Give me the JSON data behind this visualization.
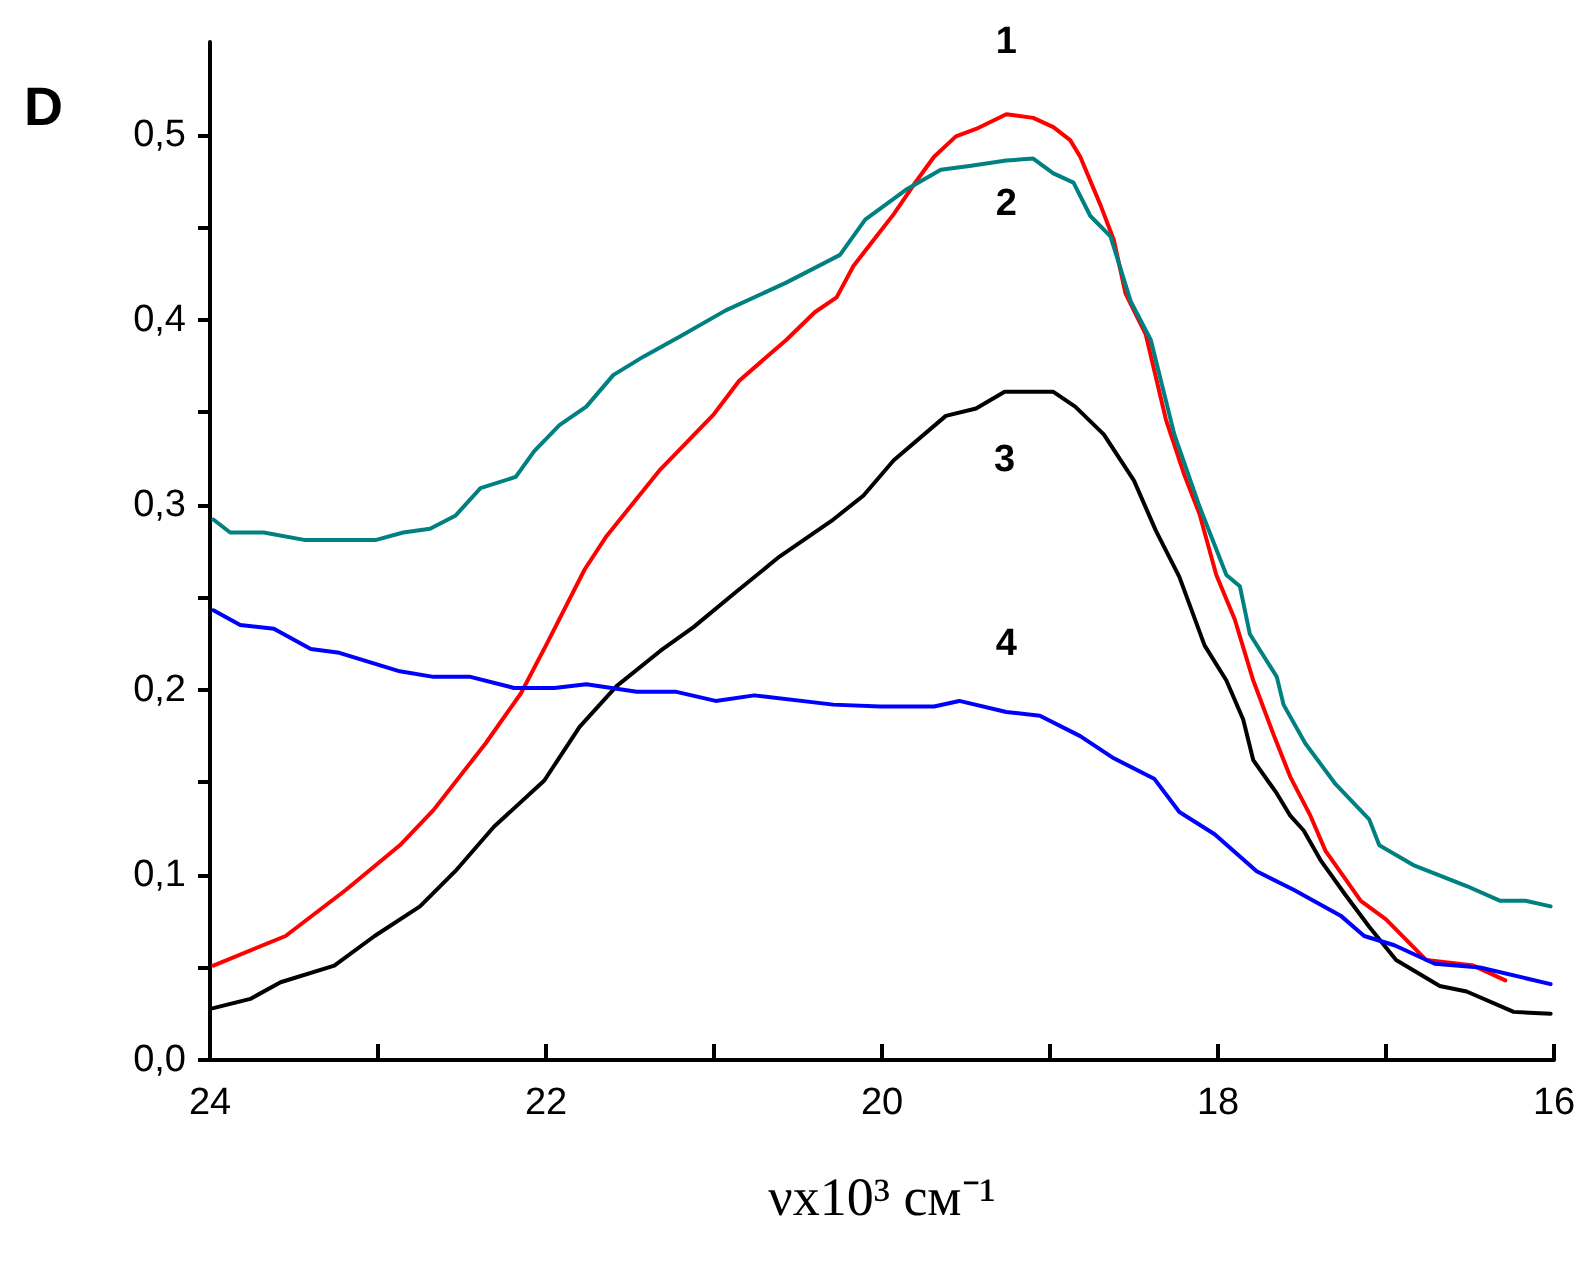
{
  "chart_data": {
    "type": "line",
    "xlabel": "νx10³ см⁻¹",
    "ylabel": "D",
    "xlim": [
      24,
      16
    ],
    "xticks": [
      24,
      {
        "value": 23,
        "label": null
      },
      22,
      {
        "value": 21,
        "label": null
      },
      20,
      {
        "value": 19,
        "label": null
      },
      18,
      {
        "value": 17,
        "label": null
      },
      16
    ],
    "ylim": [
      0,
      0.55
    ],
    "yticks": [
      {
        "value": 0,
        "label": "0,0"
      },
      {
        "value": 0.05,
        "label": null
      },
      {
        "value": 0.1,
        "label": "0,1"
      },
      {
        "value": 0.15,
        "label": null
      },
      {
        "value": 0.2,
        "label": "0,2"
      },
      {
        "value": 0.25,
        "label": null
      },
      {
        "value": 0.3,
        "label": "0,3"
      },
      {
        "value": 0.35,
        "label": null
      },
      {
        "value": 0.4,
        "label": "0,4"
      },
      {
        "value": 0.45,
        "label": null
      },
      {
        "value": 0.5,
        "label": "0,5"
      }
    ],
    "grid": false,
    "legend": false,
    "marker": "none",
    "line_style": "solid",
    "series": [
      {
        "name": "1",
        "color": "#ff0000",
        "x": [
          23.98,
          23.55,
          23.19,
          22.87,
          22.67,
          22.36,
          22.15,
          22.0,
          21.77,
          21.64,
          21.32,
          21.0,
          20.85,
          20.57,
          20.4,
          20.27,
          20.17,
          20.05,
          19.93,
          19.81,
          19.69,
          19.56,
          19.44,
          19.26,
          19.1,
          18.98,
          18.88,
          18.82,
          18.7,
          18.62,
          18.55,
          18.43,
          18.31,
          18.2,
          18.11,
          18.01,
          17.9,
          17.79,
          17.67,
          17.57,
          17.45,
          17.36,
          17.15,
          17.0,
          16.76,
          16.48,
          16.29
        ],
        "values": [
          0.051,
          0.067,
          0.092,
          0.116,
          0.135,
          0.171,
          0.198,
          0.224,
          0.265,
          0.283,
          0.319,
          0.349,
          0.367,
          0.389,
          0.404,
          0.412,
          0.429,
          0.443,
          0.457,
          0.473,
          0.488,
          0.499,
          0.503,
          0.511,
          0.509,
          0.504,
          0.497,
          0.488,
          0.462,
          0.443,
          0.414,
          0.392,
          0.346,
          0.316,
          0.295,
          0.262,
          0.238,
          0.205,
          0.176,
          0.153,
          0.132,
          0.113,
          0.086,
          0.076,
          0.054,
          0.051,
          0.043
        ]
      },
      {
        "name": "2",
        "color": "#008080",
        "x": [
          23.98,
          23.88,
          23.68,
          23.44,
          23.01,
          22.85,
          22.69,
          22.54,
          22.39,
          22.18,
          22.07,
          21.92,
          21.76,
          21.6,
          21.42,
          21.2,
          20.93,
          20.57,
          20.25,
          20.1,
          19.86,
          19.65,
          19.48,
          19.26,
          19.1,
          18.98,
          18.86,
          18.76,
          18.64,
          18.52,
          18.4,
          18.26,
          18.11,
          17.95,
          17.87,
          17.81,
          17.65,
          17.61,
          17.48,
          17.3,
          17.1,
          17.04,
          16.83,
          16.52,
          16.32,
          16.17,
          16.02
        ],
        "values": [
          0.292,
          0.285,
          0.285,
          0.281,
          0.281,
          0.285,
          0.287,
          0.294,
          0.309,
          0.315,
          0.329,
          0.343,
          0.353,
          0.37,
          0.38,
          0.391,
          0.405,
          0.42,
          0.435,
          0.454,
          0.47,
          0.481,
          0.483,
          0.486,
          0.487,
          0.479,
          0.474,
          0.456,
          0.445,
          0.41,
          0.389,
          0.338,
          0.299,
          0.262,
          0.256,
          0.23,
          0.207,
          0.192,
          0.171,
          0.149,
          0.13,
          0.116,
          0.105,
          0.094,
          0.086,
          0.086,
          0.083
        ]
      },
      {
        "name": "3",
        "color": "#000000",
        "x": [
          23.98,
          23.76,
          23.58,
          23.26,
          23.02,
          22.75,
          22.54,
          22.31,
          22.01,
          21.8,
          21.58,
          21.32,
          21.12,
          20.88,
          20.61,
          20.29,
          20.11,
          19.93,
          19.62,
          19.44,
          19.27,
          18.98,
          18.85,
          18.68,
          18.5,
          18.37,
          18.23,
          18.08,
          17.95,
          17.85,
          17.79,
          17.65,
          17.57,
          17.49,
          17.39,
          17.24,
          17.1,
          16.94,
          16.68,
          16.52,
          16.24,
          16.02
        ],
        "values": [
          0.028,
          0.033,
          0.042,
          0.051,
          0.067,
          0.083,
          0.102,
          0.126,
          0.151,
          0.18,
          0.202,
          0.221,
          0.234,
          0.252,
          0.272,
          0.292,
          0.305,
          0.324,
          0.348,
          0.352,
          0.361,
          0.361,
          0.353,
          0.338,
          0.313,
          0.286,
          0.261,
          0.224,
          0.205,
          0.184,
          0.162,
          0.144,
          0.132,
          0.124,
          0.108,
          0.089,
          0.072,
          0.054,
          0.04,
          0.037,
          0.026,
          0.025
        ]
      },
      {
        "name": "4",
        "color": "#0000ff",
        "x": [
          23.98,
          23.82,
          23.62,
          23.4,
          23.23,
          22.87,
          22.67,
          22.45,
          22.19,
          21.95,
          21.76,
          21.46,
          21.23,
          20.99,
          20.76,
          20.29,
          20.01,
          19.69,
          19.54,
          19.26,
          19.06,
          18.82,
          18.62,
          18.38,
          18.23,
          18.02,
          17.77,
          17.55,
          17.27,
          17.13,
          16.95,
          16.71,
          16.44,
          16.02
        ],
        "values": [
          0.243,
          0.235,
          0.233,
          0.222,
          0.22,
          0.21,
          0.207,
          0.207,
          0.201,
          0.201,
          0.203,
          0.199,
          0.199,
          0.194,
          0.197,
          0.192,
          0.191,
          0.191,
          0.194,
          0.188,
          0.186,
          0.175,
          0.163,
          0.152,
          0.134,
          0.122,
          0.102,
          0.092,
          0.078,
          0.067,
          0.062,
          0.052,
          0.05,
          0.041
        ]
      }
    ]
  }
}
